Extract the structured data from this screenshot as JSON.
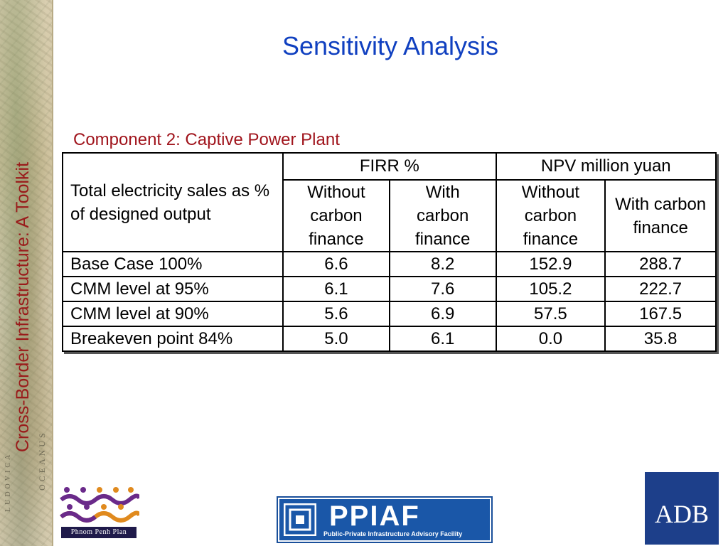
{
  "sidebar": {
    "vertical_title": "Cross-Border Infrastructure: A Toolkit",
    "map_words": [
      "OCEANUS",
      "LUDOVICA"
    ]
  },
  "slide": {
    "title": "Sensitivity Analysis",
    "subtitle": "Component 2: Captive Power Plant"
  },
  "table": {
    "corner_header": "Total electricity sales as % of designed output",
    "group_headers": [
      "FIRR %",
      "NPV million yuan"
    ],
    "sub_headers": [
      "Without carbon finance",
      "With carbon finance",
      "Without carbon finance",
      "With carbon finance"
    ],
    "rows": [
      {
        "label": "Base Case 100%",
        "values": [
          "6.6",
          "8.2",
          "152.9",
          "288.7"
        ]
      },
      {
        "label": "CMM level at 95%",
        "values": [
          "6.1",
          "7.6",
          "105.2",
          "222.7"
        ]
      },
      {
        "label": "CMM level at 90%",
        "values": [
          "5.6",
          "6.9",
          "57.5",
          "167.5"
        ]
      },
      {
        "label": "Breakeven point 84%",
        "values": [
          "5.0",
          "6.1",
          "0.0",
          "35.8"
        ]
      }
    ]
  },
  "logos": {
    "phnom_penh": "Phnom Penh Plan",
    "ppiaf": "PPIAF",
    "ppiaf_tagline": "Public-Private Infrastructure Advisory Facility",
    "adb": "ADB"
  },
  "colors": {
    "title": "#1040c0",
    "subtitle": "#a0141c",
    "sidebar_text": "#9a1b1b",
    "adb_blue": "#1d3f8a",
    "ppiaf_blue": "#1a57a8"
  }
}
